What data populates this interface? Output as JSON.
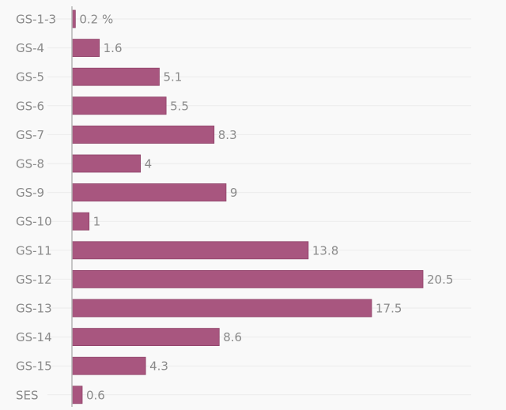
{
  "chart_data": {
    "type": "bar",
    "orientation": "horizontal",
    "title": "",
    "xlabel": "",
    "ylabel": "",
    "categories": [
      "GS-1-3",
      "GS-4",
      "GS-5",
      "GS-6",
      "GS-7",
      "GS-8",
      "GS-9",
      "GS-10",
      "GS-11",
      "GS-12",
      "GS-13",
      "GS-14",
      "GS-15",
      "SES"
    ],
    "values": [
      0.2,
      1.6,
      5.1,
      5.5,
      8.3,
      4,
      9,
      1,
      13.8,
      20.5,
      17.5,
      8.6,
      4.3,
      0.6
    ],
    "value_labels": [
      "0.2 %",
      "1.6",
      "5.1",
      "5.5",
      "8.3",
      "4",
      "9",
      "1",
      "13.8",
      "20.5",
      "17.5",
      "8.6",
      "4.3",
      "0.6"
    ],
    "unit": "%",
    "xlim": [
      0,
      23.3
    ],
    "grid": true,
    "legend": "none",
    "colors": {
      "bar": "#a8567f",
      "bar_edge": "#8f4469",
      "grid": "#ececec",
      "axis": "#b5b5b5",
      "text": "#8a8a8a"
    }
  }
}
